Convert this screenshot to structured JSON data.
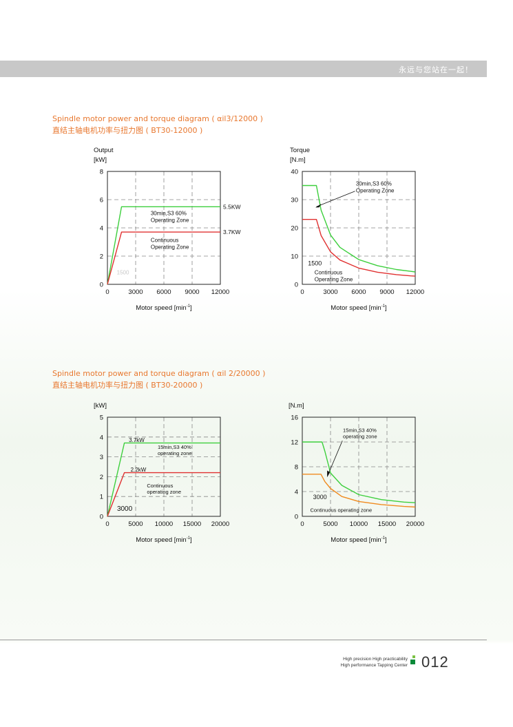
{
  "header": {
    "slogan": "永远与您站在一起！"
  },
  "section1": {
    "title_en": "Spindle motor power and torque diagram ( αil3/12000 )",
    "title_cn": "直结主轴电机功率与扭力图 ( BT30-12000 )"
  },
  "section2": {
    "title_en": "Spindle motor power and torque diagram ( αil 2/20000 )",
    "title_cn": "直结主轴电机功率与扭力图 ( BT30-20000 )"
  },
  "chart_data": [
    {
      "type": "line",
      "ylabel_line1": "Output",
      "ylabel_line2": "[kW]",
      "xlabel": "Motor speed [min",
      "xlim": [
        0,
        12000
      ],
      "ylim": [
        0,
        8
      ],
      "xticks": [
        0,
        3000,
        6000,
        9000,
        12000
      ],
      "yticks": [
        0,
        2,
        4,
        6,
        8
      ],
      "grid": true,
      "series": [
        {
          "color": "#3ccf3c",
          "x": [
            0,
            1500,
            12000
          ],
          "y": [
            0,
            5.5,
            5.5
          ]
        },
        {
          "color": "#e03030",
          "x": [
            0,
            1500,
            12000
          ],
          "y": [
            0,
            3.7,
            3.7
          ]
        }
      ],
      "annotations": {
        "end_label_1": "5.5KW",
        "end_label_2": "3.7KW",
        "zone_1_line1": "30min,S3 60%",
        "zone_1_line2": "Operating Zone",
        "zone_2_line1": "Continuous",
        "zone_2_line2": "Operating Zone",
        "base_speed": "1500"
      }
    },
    {
      "type": "line",
      "ylabel_line1": "Torque",
      "ylabel_line2": "[N.m]",
      "xlabel": "Motor speed [min",
      "xlim": [
        0,
        12000
      ],
      "ylim": [
        0,
        40
      ],
      "xticks": [
        0,
        3000,
        6000,
        9000,
        12000
      ],
      "yticks": [
        0,
        10,
        20,
        30,
        40
      ],
      "grid": true,
      "series": [
        {
          "color": "#3ccf3c",
          "x": [
            0,
            1500,
            2000,
            3000,
            4000,
            6000,
            8000,
            10000,
            11500,
            12000
          ],
          "y": [
            35,
            35,
            26.3,
            17.5,
            13.1,
            8.75,
            6.6,
            5.25,
            4.6,
            4.4
          ]
        },
        {
          "color": "#e03030",
          "x": [
            0,
            1500,
            2000,
            3000,
            4000,
            6000,
            8000,
            10000,
            11500,
            12000
          ],
          "y": [
            23,
            23,
            17.3,
            11.5,
            8.6,
            5.75,
            4.3,
            3.45,
            3.0,
            2.9
          ]
        }
      ],
      "annotations": {
        "zone_1_line1": "30min,S3 60%",
        "zone_1_line2": "Operating Zone",
        "zone_2_line1": "Continuous",
        "zone_2_line2": "Operating Zone",
        "base_speed": "1500"
      }
    },
    {
      "type": "line",
      "ylabel_line1": "",
      "ylabel_line2": "[kW]",
      "xlabel": "Motor speed [min",
      "xlim": [
        0,
        20000
      ],
      "ylim": [
        0,
        5
      ],
      "xticks": [
        0,
        5000,
        10000,
        15000,
        20000
      ],
      "yticks": [
        0,
        1,
        2,
        3,
        4,
        5
      ],
      "grid": true,
      "series": [
        {
          "color": "#3ccf3c",
          "x": [
            0,
            3000,
            20000
          ],
          "y": [
            0,
            3.7,
            3.7
          ]
        },
        {
          "color": "#e03030",
          "x": [
            0,
            3000,
            20000
          ],
          "y": [
            0,
            2.2,
            2.2
          ]
        }
      ],
      "annotations": {
        "end_label_1": "3.7kW",
        "end_label_2": "2.2kW",
        "zone_1_line1": "15min,S3 40%",
        "zone_1_line2": "operating  zone",
        "zone_2_line1": "Continuous",
        "zone_2_line2": "operating  zone",
        "base_speed": "3000"
      }
    },
    {
      "type": "line",
      "ylabel_line1": "",
      "ylabel_line2": "[N.m]",
      "xlabel": "Motor speed [min",
      "xlim": [
        0,
        20000
      ],
      "ylim": [
        0,
        16
      ],
      "xticks": [
        0,
        5000,
        10000,
        15000,
        20000
      ],
      "yticks": [
        0,
        4,
        8,
        12,
        16
      ],
      "grid": true,
      "series": [
        {
          "color": "#3ccf3c",
          "x": [
            0,
            3500,
            4000,
            5000,
            7000,
            10000,
            14000,
            18000,
            20000
          ],
          "y": [
            12,
            12,
            10.5,
            7.0,
            5.0,
            3.5,
            2.7,
            2.3,
            2.2
          ]
        },
        {
          "color": "#f08a1e",
          "x": [
            0,
            3300,
            4000,
            5000,
            7000,
            10000,
            14000,
            18000,
            20000
          ],
          "y": [
            6.8,
            6.8,
            5.6,
            4.5,
            3.2,
            2.4,
            1.9,
            1.6,
            1.5
          ]
        }
      ],
      "annotations": {
        "zone_1_line1": "15min,S3 40%",
        "zone_1_line2": "operating  zone",
        "zone_2_line1": "Continuous operating  zone",
        "base_speed": "3000"
      }
    }
  ],
  "footer": {
    "tagline_line1": "High precision High practicability",
    "tagline_line2": "High performance Tapping Center",
    "page_number": "012"
  }
}
